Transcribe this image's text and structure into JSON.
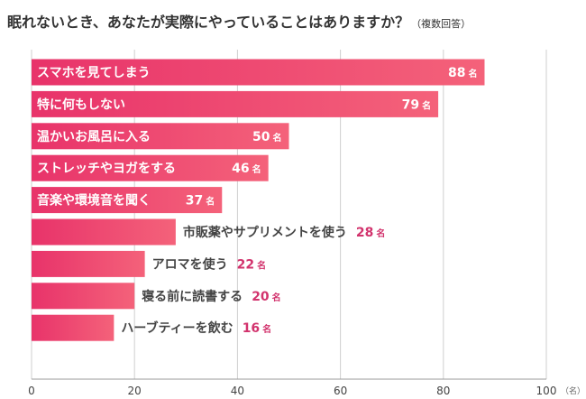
{
  "chart_data": {
    "type": "bar",
    "orientation": "horizontal",
    "title": "眠れないとき、あなたが実際にやっていることはありますか？",
    "title_note": "（複数回答）",
    "unit": "名",
    "axis_unit_label": "（名）",
    "xlim": [
      0,
      100
    ],
    "xticks": [
      0,
      20,
      40,
      60,
      80,
      100
    ],
    "grid": true,
    "bar_color_start": "#e8336a",
    "bar_color_end": "#f4627a",
    "value_color_inside": "#ffffff",
    "value_color_outside": "#d2336d",
    "label_color_outside": "#444444",
    "grid_color": "#cfcfcf",
    "categories": [
      "スマホを見てしまう",
      "特に何もしない",
      "温かいお風呂に入る",
      "ストレッチやヨガをする",
      "音楽や環境音を聞く",
      "市販薬やサプリメントを使う",
      "アロマを使う",
      "寝る前に読書する",
      "ハーブティーを飲む"
    ],
    "values": [
      88,
      79,
      50,
      46,
      37,
      28,
      22,
      20,
      16
    ],
    "label_inside": [
      true,
      true,
      true,
      true,
      true,
      false,
      false,
      false,
      false
    ]
  }
}
